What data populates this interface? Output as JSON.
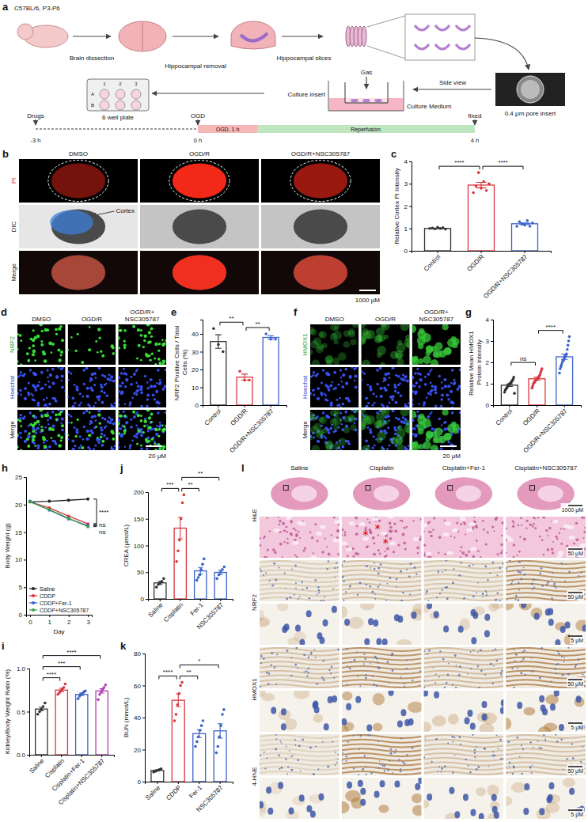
{
  "figure": {
    "panel_letters": [
      "a",
      "b",
      "c",
      "d",
      "e",
      "f",
      "g",
      "h",
      "i",
      "j",
      "k",
      "l"
    ],
    "a": {
      "strain": "C57BL/6, P3-P6",
      "steps": [
        "Brain dissection",
        "Hippocampal removal",
        "Hippocampal slices"
      ],
      "gas": "Gas",
      "culture_medium": "Culture Medium",
      "culture_insert": "Culture insert",
      "side_view": "Side view",
      "pore_insert": "0.4 μm pore insert",
      "plate": "6 well plate",
      "well_columns": [
        "1",
        "2",
        "3"
      ],
      "well_rows": [
        "A",
        "B"
      ],
      "drugs": "Drugs",
      "ogd": "OGD",
      "phases": [
        "OGD, 1 h",
        "Reperfusion"
      ],
      "fixed": "fixed",
      "times": [
        "-3 h",
        "0 h",
        "4 h"
      ]
    },
    "b": {
      "columns": [
        "DMSO",
        "OGD/R",
        "OGD/R+NSC305787"
      ],
      "rows": [
        "PI",
        "DIC",
        "Merge"
      ],
      "cortex": "Cortex",
      "scale": "1000 μM"
    },
    "d": {
      "columns": [
        "DMSO",
        "OGD/R",
        "OGD/R+NSC305787"
      ],
      "rows": [
        "NRF2",
        "Hoechst",
        "Merge"
      ],
      "scale": "20 μM"
    },
    "f": {
      "columns": [
        "DMSO",
        "OGD/R",
        "OGD/R+NSC305787"
      ],
      "rows": [
        "HMOX1",
        "Hoechst",
        "Merge"
      ],
      "scale": "20 μM"
    },
    "l": {
      "columns": [
        "Saline",
        "Cisplatin",
        "Cisplatin+Fer-1",
        "Cisplatin+NSC305787"
      ],
      "rows": [
        "H&E",
        "NRF2",
        "HMOX1",
        "4-HNE"
      ],
      "scales": [
        "1000 μM",
        "50 μM",
        "5 μM"
      ]
    }
  },
  "chart_data": [
    {
      "type": "bar",
      "ylabel": "Relative Cortex PI Intensity",
      "categories": [
        "Control",
        "OGD/R",
        "OGD/R+NSC305787"
      ],
      "values": [
        1.0,
        2.94,
        1.21
      ],
      "errors": [
        0.01,
        0.12,
        0.04
      ],
      "points": [
        [
          1.0,
          1.02,
          0.98,
          1.05,
          1.0,
          1.03,
          0.97
        ],
        [
          2.6,
          2.9,
          3.5,
          2.8,
          3.1,
          2.7,
          3.0
        ],
        [
          1.1,
          1.3,
          1.2,
          1.15,
          1.35,
          1.1,
          1.25
        ]
      ],
      "colors": [
        "#333333",
        "#d9363e",
        "#3a62c9"
      ],
      "ylim": [
        0,
        4
      ],
      "yticks": [
        0,
        1,
        2,
        3,
        4
      ],
      "significance": [
        {
          "between": [
            "Control",
            "OGD/R"
          ],
          "label": "****"
        },
        {
          "between": [
            "OGD/R",
            "OGD/R+NSC305787"
          ],
          "label": "****"
        }
      ]
    },
    {
      "type": "bar",
      "ylabel": "NRF2 Positive Cells / Total Cells (%)",
      "categories": [
        "Control",
        "OGD/R",
        "OGD/R+NSC305787"
      ],
      "values": [
        35.7,
        15.7,
        38
      ],
      "errors": [
        3.8,
        1.7,
        1.0
      ],
      "points": [
        [
          43,
          34,
          30
        ],
        [
          19,
          14,
          14
        ],
        [
          40,
          37,
          37
        ]
      ],
      "colors": [
        "#333333",
        "#d9363e",
        "#3a62c9"
      ],
      "ylim": [
        0,
        48
      ],
      "yticks": [
        0,
        10,
        20,
        30,
        40
      ],
      "significance": [
        {
          "between": [
            "Control",
            "OGD/R"
          ],
          "label": "**"
        },
        {
          "between": [
            "OGD/R",
            "OGD/R+NSC305787"
          ],
          "label": "**"
        }
      ]
    },
    {
      "type": "bar",
      "ylabel": "Relative Mean HMOX1 Protein Intensity",
      "categories": [
        "Control",
        "OGD/R",
        "OGD/R+NSC305787"
      ],
      "values": [
        0.93,
        1.23,
        2.26
      ],
      "errors": [
        0.06,
        0.07,
        0.12
      ],
      "points": [
        [
          0.6,
          0.7,
          0.75,
          0.8,
          0.85,
          0.9,
          0.95,
          1.0,
          1.0,
          1.05,
          1.1,
          1.15,
          1.2,
          1.3,
          0.55
        ],
        [
          0.8,
          0.9,
          1.0,
          1.05,
          1.1,
          1.15,
          1.2,
          1.2,
          1.25,
          1.3,
          1.35,
          1.4,
          1.5,
          1.6,
          1.7
        ],
        [
          1.5,
          1.7,
          1.8,
          1.9,
          2.0,
          2.1,
          2.1,
          2.2,
          2.3,
          2.3,
          2.4,
          2.6,
          2.8,
          3.0,
          3.2
        ]
      ],
      "colors": [
        "#333333",
        "#d9363e",
        "#3a62c9"
      ],
      "ylim": [
        0,
        4
      ],
      "yticks": [
        0,
        1,
        2,
        3,
        4
      ],
      "significance": [
        {
          "between": [
            "Control",
            "OGD/R"
          ],
          "label": "ns"
        },
        {
          "between": [
            "OGD/R",
            "OGD/R+NSC305787"
          ],
          "label": "****"
        }
      ]
    },
    {
      "type": "line",
      "ylabel": "Body Weight (g)",
      "xlabel": "Day",
      "x": [
        0,
        1,
        2,
        3
      ],
      "xlim": [
        -0.2,
        3.2
      ],
      "xticks": [
        0,
        1,
        2,
        3
      ],
      "ylim": [
        0,
        25
      ],
      "yticks": [
        0,
        5,
        10,
        15,
        20,
        25
      ],
      "legend": "lower left",
      "series": [
        {
          "name": "Saline",
          "color": "#222222",
          "marker": "circle",
          "values": [
            20.5,
            20.6,
            20.8,
            21.0
          ]
        },
        {
          "name": "CDDP",
          "color": "#d9363e",
          "marker": "circle",
          "values": [
            20.5,
            19.4,
            17.9,
            16.5
          ]
        },
        {
          "name": "CDDP+Fer-1",
          "color": "#3a62c9",
          "marker": "circle",
          "values": [
            20.6,
            19.0,
            17.4,
            16.2
          ]
        },
        {
          "name": "CDDP+NSC305787",
          "color": "#3aa04a",
          "marker": "circle",
          "values": [
            20.5,
            19.1,
            17.5,
            16.0
          ]
        }
      ],
      "significance": [
        {
          "between": [
            "Saline",
            "CDDP"
          ],
          "label": "****"
        },
        {
          "between": [
            "CDDP",
            "CDDP+Fer-1"
          ],
          "label": "ns"
        },
        {
          "between": [
            "CDDP+Fer-1",
            "CDDP+NSC305787"
          ],
          "label": "ns"
        }
      ]
    },
    {
      "type": "bar",
      "ylabel": "Kidney/Body Weight Ratio (%)",
      "categories": [
        "Saline",
        "Cisplatin",
        "Cisplatin+Fer-1",
        "Cisplatin+NSC305787"
      ],
      "values": [
        0.53,
        0.75,
        0.7,
        0.74
      ],
      "errors": [
        0.02,
        0.02,
        0.014,
        0.025
      ],
      "points": [
        [
          0.47,
          0.5,
          0.53,
          0.56,
          0.6
        ],
        [
          0.7,
          0.72,
          0.74,
          0.76,
          0.78,
          0.82
        ],
        [
          0.65,
          0.68,
          0.7,
          0.71,
          0.73,
          0.74
        ],
        [
          0.64,
          0.7,
          0.73,
          0.76,
          0.78,
          0.81
        ]
      ],
      "colors": [
        "#333333",
        "#d9363e",
        "#3a62c9",
        "#b03fb5"
      ],
      "ylim": [
        0,
        1
      ],
      "yticks": [
        {
          "value": 0,
          "label": "0.0"
        },
        {
          "value": 0.5,
          "label": "0.5"
        },
        {
          "value": 1,
          "label": "1.0"
        }
      ],
      "significance": [
        {
          "between": [
            "Saline",
            "Cisplatin"
          ],
          "label": "****"
        },
        {
          "between": [
            "Saline",
            "Cisplatin+Fer-1"
          ],
          "label": "***"
        },
        {
          "between": [
            "Saline",
            "Cisplatin+NSC305787"
          ],
          "label": "****"
        }
      ]
    },
    {
      "type": "bar",
      "ylabel": "CREA (μmol/L)",
      "categories": [
        "Saline",
        "Cisplatin",
        "Fer-1",
        "NSC305787"
      ],
      "values": [
        30,
        132.5,
        52.5,
        49.6
      ],
      "errors": [
        3,
        20,
        6.3,
        4
      ],
      "points": [
        [
          22,
          27,
          30,
          33,
          38
        ],
        [
          70,
          90,
          110,
          150,
          180,
          195
        ],
        [
          35,
          40,
          45,
          55,
          65,
          75
        ],
        [
          38,
          45,
          50,
          55,
          60
        ]
      ],
      "colors": [
        "#333333",
        "#d9363e",
        "#3a62c9",
        "#3a62c9"
      ],
      "ylim": [
        0,
        200
      ],
      "yticks": [
        0,
        50,
        100,
        150,
        200
      ],
      "significance": [
        {
          "between": [
            "Saline",
            "Cisplatin"
          ],
          "label": "***"
        },
        {
          "between": [
            "Cisplatin",
            "Fer-1"
          ],
          "label": "**"
        },
        {
          "between": [
            "Cisplatin",
            "NSC305787"
          ],
          "label": "**"
        }
      ]
    },
    {
      "type": "bar",
      "ylabel": "BUN (mmol/L)",
      "categories": [
        "Saline",
        "CDDP",
        "Fer-1",
        "NSC305787"
      ],
      "values": [
        7,
        50.8,
        30,
        31.7
      ],
      "errors": [
        0.35,
        4,
        2.5,
        4.5
      ],
      "points": [
        [
          6,
          6.5,
          7,
          7.5,
          8
        ],
        [
          38,
          42,
          48,
          55,
          60,
          62
        ],
        [
          22,
          25,
          28,
          32,
          35,
          38
        ],
        [
          18,
          22,
          28,
          35,
          42,
          45
        ]
      ],
      "colors": [
        "#333333",
        "#d9363e",
        "#3a62c9",
        "#3a62c9"
      ],
      "ylim": [
        0,
        80
      ],
      "yticks": [
        0,
        20,
        40,
        60,
        80
      ],
      "significance": [
        {
          "between": [
            "Saline",
            "CDDP"
          ],
          "label": "****"
        },
        {
          "between": [
            "CDDP",
            "Fer-1"
          ],
          "label": "**"
        },
        {
          "between": [
            "CDDP",
            "NSC305787"
          ],
          "label": "*"
        }
      ]
    }
  ]
}
